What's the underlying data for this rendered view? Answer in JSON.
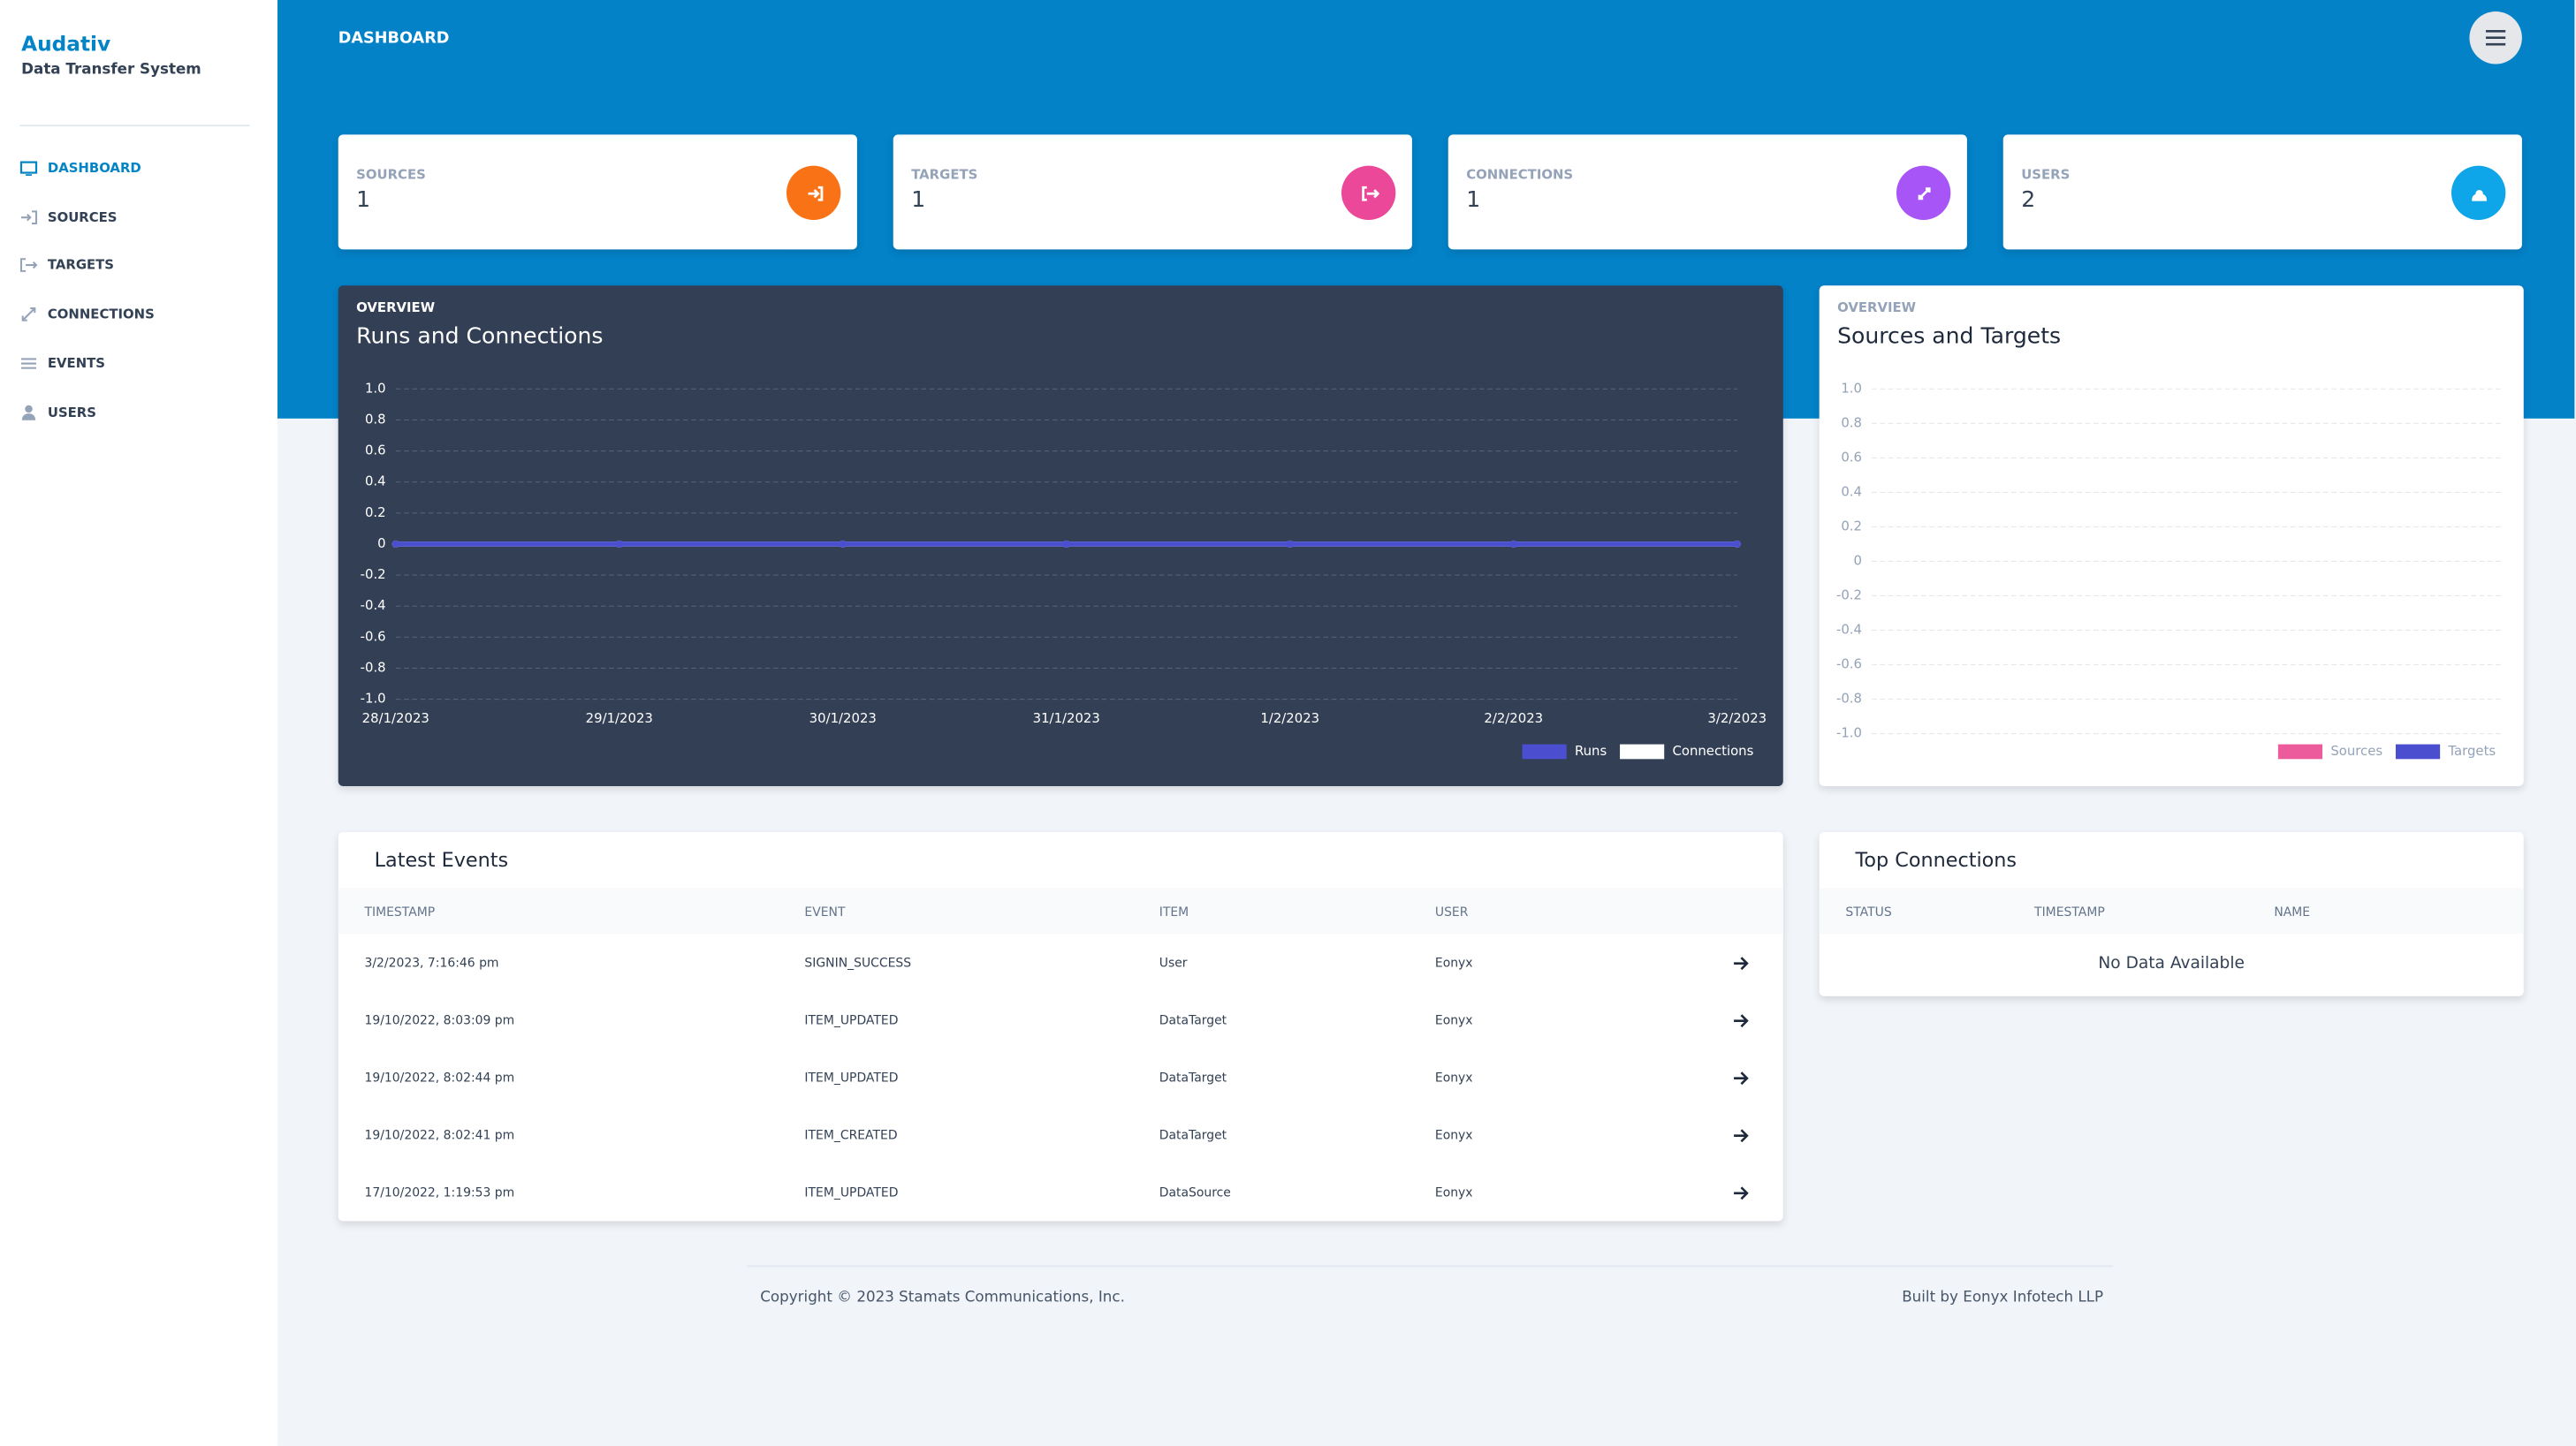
{
  "sidebar": {
    "brand": "Audativ",
    "subtitle": "Data Transfer System",
    "nav": [
      "DASHBOARD",
      "SOURCES",
      "TARGETS",
      "CONNECTIONS",
      "EVENTS",
      "USERS"
    ]
  },
  "header": {
    "title": "DASHBOARD"
  },
  "stats": [
    {
      "label": "SOURCES",
      "value": 1
    },
    {
      "label": "TARGETS",
      "value": 1
    },
    {
      "label": "CONNECTIONS",
      "value": 1
    },
    {
      "label": "USERS",
      "value": 2
    }
  ],
  "chart_data": [
    {
      "type": "line",
      "subtitle": "OVERVIEW",
      "title": "Runs and Connections",
      "categories": [
        "28/1/2023",
        "29/1/2023",
        "30/1/2023",
        "31/1/2023",
        "1/2/2023",
        "2/2/2023",
        "3/2/2023"
      ],
      "series": [
        {
          "name": "Runs",
          "color": "#4b4fcf",
          "values": [
            0,
            0,
            0,
            0,
            0,
            0,
            0
          ]
        },
        {
          "name": "Connections",
          "color": "#ffffff",
          "values": [
            0,
            0,
            0,
            0,
            0,
            0,
            0
          ]
        }
      ],
      "ylim": [
        -1,
        1
      ],
      "yticks": [
        {
          "value": -1,
          "label": "-1.0"
        },
        -0.8,
        -0.6,
        -0.4,
        -0.2,
        0,
        0.2,
        0.4,
        0.6,
        0.8,
        {
          "value": 1,
          "label": "1.0"
        }
      ],
      "grid": true,
      "legend": "bottom-right"
    },
    {
      "type": "bar",
      "subtitle": "OVERVIEW",
      "title": "Sources and Targets",
      "categories": [],
      "series": [
        {
          "name": "Sources",
          "color": "#ec5c9c",
          "values": []
        },
        {
          "name": "Targets",
          "color": "#4b4fcf",
          "values": []
        }
      ],
      "ylim": [
        -1,
        1
      ],
      "yticks": [
        {
          "value": -1,
          "label": "-1.0"
        },
        -0.8,
        -0.6,
        -0.4,
        -0.2,
        0,
        0.2,
        0.4,
        0.6,
        0.8,
        {
          "value": 1,
          "label": "1.0"
        }
      ],
      "grid": true,
      "legend": "bottom-right"
    }
  ],
  "events": {
    "title": "Latest Events",
    "columns": [
      "TIMESTAMP",
      "EVENT",
      "ITEM",
      "USER"
    ],
    "rows": [
      [
        "3/2/2023, 7:16:46 pm",
        "SIGNIN_SUCCESS",
        "User",
        "Eonyx"
      ],
      [
        "19/10/2022, 8:03:09 pm",
        "ITEM_UPDATED",
        "DataTarget",
        "Eonyx"
      ],
      [
        "19/10/2022, 8:02:44 pm",
        "ITEM_UPDATED",
        "DataTarget",
        "Eonyx"
      ],
      [
        "19/10/2022, 8:02:41 pm",
        "ITEM_CREATED",
        "DataTarget",
        "Eonyx"
      ],
      [
        "17/10/2022, 1:19:53 pm",
        "ITEM_UPDATED",
        "DataSource",
        "Eonyx"
      ]
    ]
  },
  "top_connections": {
    "title": "Top Connections",
    "columns": [
      "STATUS",
      "TIMESTAMP",
      "NAME"
    ],
    "empty": "No Data Available"
  },
  "footer": {
    "copyright": "Copyright © 2023 Stamats Communications, Inc.",
    "credit": "Built by Eonyx Infotech LLP"
  }
}
